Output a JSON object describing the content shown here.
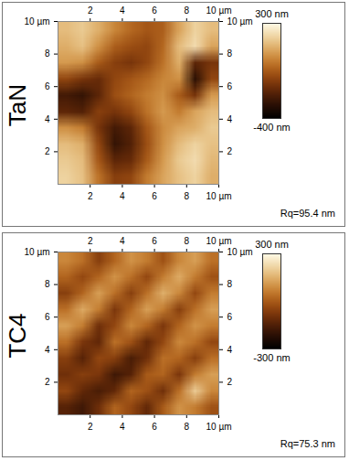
{
  "chart_data": [
    {
      "type": "heatmap",
      "title": "TaN",
      "xlim": [
        0,
        10
      ],
      "xticks": [
        2,
        4,
        6,
        8,
        {
          "value": 10,
          "label": "10 µm"
        }
      ],
      "ylim": [
        0,
        10
      ],
      "yticks": [
        2,
        4,
        6,
        8,
        {
          "value": 10,
          "label": "10 µm"
        }
      ],
      "cells": [
        [
          150,
          180,
          120,
          40,
          -20,
          -60,
          -40,
          100,
          200,
          150
        ],
        [
          120,
          160,
          60,
          -40,
          -80,
          -100,
          -20,
          150,
          220,
          100
        ],
        [
          80,
          60,
          -50,
          -120,
          -150,
          -100,
          0,
          120,
          -200,
          -150
        ],
        [
          -100,
          -150,
          -180,
          -100,
          -60,
          -20,
          40,
          60,
          -300,
          -100
        ],
        [
          -250,
          -280,
          -200,
          -80,
          -30,
          20,
          60,
          -50,
          -150,
          80
        ],
        [
          -200,
          -220,
          -120,
          -150,
          -100,
          0,
          80,
          20,
          100,
          150
        ],
        [
          60,
          20,
          -150,
          -250,
          -200,
          -60,
          50,
          100,
          120,
          180
        ],
        [
          150,
          120,
          -100,
          -280,
          -220,
          -80,
          60,
          150,
          200,
          160
        ],
        [
          180,
          150,
          -60,
          -200,
          -180,
          -50,
          80,
          180,
          220,
          140
        ],
        [
          200,
          160,
          0,
          -120,
          -100,
          20,
          100,
          160,
          200,
          120
        ]
      ],
      "colorbar": {
        "range": [
          -400,
          300
        ],
        "ticks": [
          {
            "value": 300,
            "label": "300 nm"
          },
          {
            "value": -400,
            "label": "-400 nm"
          }
        ]
      },
      "annotations": [
        "Rq=95.4 nm"
      ]
    },
    {
      "type": "heatmap",
      "title": "TC4",
      "xlim": [
        0,
        10
      ],
      "xticks": [
        2,
        4,
        6,
        8,
        {
          "value": 10,
          "label": "10 µm"
        }
      ],
      "ylim": [
        0,
        10
      ],
      "yticks": [
        2,
        4,
        6,
        8,
        {
          "value": 10,
          "label": "10 µm"
        }
      ],
      "cells": [
        [
          80,
          40,
          -60,
          20,
          100,
          60,
          -20,
          80,
          120,
          40
        ],
        [
          20,
          -40,
          20,
          100,
          40,
          -40,
          60,
          140,
          60,
          -20
        ],
        [
          -60,
          20,
          120,
          40,
          -60,
          40,
          150,
          80,
          -40,
          60
        ],
        [
          40,
          140,
          60,
          -80,
          20,
          120,
          60,
          -60,
          40,
          120
        ],
        [
          120,
          60,
          -100,
          -40,
          80,
          20,
          -80,
          20,
          100,
          60
        ],
        [
          40,
          -80,
          -120,
          40,
          -20,
          -120,
          -40,
          80,
          40,
          -40
        ],
        [
          -60,
          -140,
          -40,
          -60,
          -160,
          -100,
          40,
          20,
          -60,
          40
        ],
        [
          -100,
          -60,
          -80,
          -180,
          -140,
          0,
          20,
          -80,
          60,
          120
        ],
        [
          -40,
          -120,
          -160,
          -120,
          20,
          -20,
          -100,
          40,
          200,
          80
        ],
        [
          -140,
          -180,
          -100,
          20,
          -40,
          -120,
          0,
          100,
          60,
          -20
        ]
      ],
      "colorbar": {
        "range": [
          -300,
          300
        ],
        "ticks": [
          {
            "value": 300,
            "label": "300 nm"
          },
          {
            "value": -300,
            "label": "-300 nm"
          }
        ]
      },
      "annotations": [
        "Rq=75.3 nm"
      ]
    }
  ]
}
